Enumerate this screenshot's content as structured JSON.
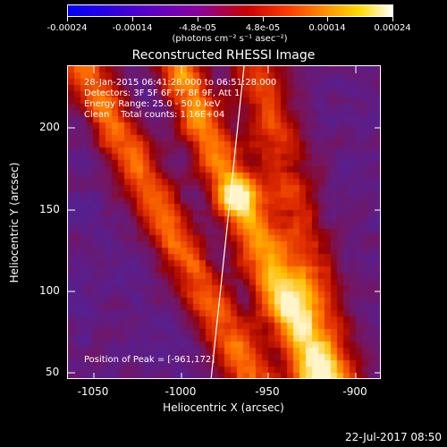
{
  "colorbar": {
    "tick_labels": [
      "-0.00024",
      "-0.00014",
      "-4.8e-05",
      "4.8e-05",
      "0.00014",
      "0.00024"
    ],
    "units": "(photons cm⁻² s⁻¹ asec⁻²)"
  },
  "title": "Reconstructed RHESSI Image",
  "info": {
    "time_range": "28-Jan-2015 06:41:28.000 to 06:51:28.000",
    "detectors": "Detectors: 3F 5F 6F 7F 8F 9F, Att 1",
    "energy": "Energy Range: 25.0 - 50.0 keV",
    "clean": "Clean    Total counts: 1.16E+04",
    "peak": "Position of Peak = [-961,172]"
  },
  "x_axis": {
    "label": "Heliocentric X (arcsec)",
    "ticks": [
      "-1050",
      "-1000",
      "-950",
      "-900"
    ]
  },
  "y_axis": {
    "label": "Heliocentric Y (arcsec)",
    "ticks": [
      "200",
      "150",
      "100",
      "50"
    ]
  },
  "footer": {
    "date": "22-Jul-2017 08:50"
  },
  "colors": {
    "background": "#000000",
    "axis": "#ffffff",
    "limb": "#ffffff"
  }
}
